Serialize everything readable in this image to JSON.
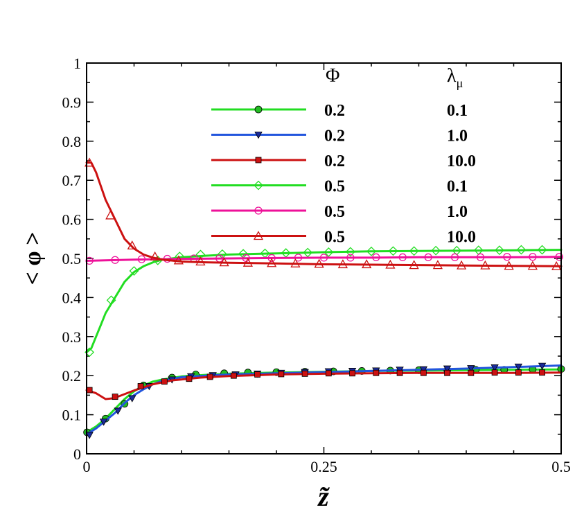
{
  "chart_data": {
    "type": "line",
    "xlabel": "z̃",
    "ylabel": "< φ >",
    "xlim": [
      0,
      0.5
    ],
    "ylim": [
      0,
      1
    ],
    "x_ticks": [
      {
        "value": 0,
        "label": "0"
      },
      {
        "value": 0.25,
        "label": "0.25"
      },
      {
        "value": 0.5,
        "label": "0.5"
      }
    ],
    "y_ticks": [
      {
        "value": 0,
        "label": "0"
      },
      {
        "value": 0.1,
        "label": "0.1"
      },
      {
        "value": 0.2,
        "label": "0.2"
      },
      {
        "value": 0.3,
        "label": "0.3"
      },
      {
        "value": 0.4,
        "label": "0.4"
      },
      {
        "value": 0.5,
        "label": "0.5"
      },
      {
        "value": 0.6,
        "label": "0.6"
      },
      {
        "value": 0.7,
        "label": "0.7"
      },
      {
        "value": 0.8,
        "label": "0.8"
      },
      {
        "value": 0.9,
        "label": "0.9"
      },
      {
        "value": 1,
        "label": "1"
      }
    ],
    "legend": {
      "header_phi": "Φ",
      "header_lambda": "λ",
      "header_lambda_sub": "μ",
      "placement": "top-right"
    },
    "series": [
      {
        "name": "Φ=0.2, λμ=0.1",
        "phi": "0.2",
        "lambda": "0.1",
        "color": "#22dd22",
        "marker": "circle",
        "marker_fill": "#22bb22",
        "line": [
          [
            0,
            0.055
          ],
          [
            0.01,
            0.07
          ],
          [
            0.02,
            0.09
          ],
          [
            0.03,
            0.115
          ],
          [
            0.04,
            0.14
          ],
          [
            0.05,
            0.16
          ],
          [
            0.06,
            0.175
          ],
          [
            0.07,
            0.185
          ],
          [
            0.08,
            0.19
          ],
          [
            0.1,
            0.198
          ],
          [
            0.125,
            0.202
          ],
          [
            0.15,
            0.205
          ],
          [
            0.2,
            0.208
          ],
          [
            0.25,
            0.21
          ],
          [
            0.3,
            0.212
          ],
          [
            0.35,
            0.213
          ],
          [
            0.4,
            0.214
          ],
          [
            0.45,
            0.215
          ],
          [
            0.5,
            0.216
          ]
        ],
        "markers": [
          [
            0.0005,
            0.055
          ],
          [
            0.02,
            0.09
          ],
          [
            0.04,
            0.128
          ],
          [
            0.06,
            0.175
          ],
          [
            0.09,
            0.195
          ],
          [
            0.115,
            0.203
          ],
          [
            0.145,
            0.206
          ],
          [
            0.17,
            0.208
          ],
          [
            0.2,
            0.209
          ],
          [
            0.23,
            0.21
          ],
          [
            0.26,
            0.211
          ],
          [
            0.29,
            0.212
          ],
          [
            0.32,
            0.213
          ],
          [
            0.35,
            0.214
          ],
          [
            0.38,
            0.214
          ],
          [
            0.41,
            0.215
          ],
          [
            0.44,
            0.215
          ],
          [
            0.47,
            0.216
          ],
          [
            0.5,
            0.217
          ]
        ]
      },
      {
        "name": "Φ=0.2, λμ=1.0",
        "phi": "0.2",
        "lambda": "1.0",
        "color": "#2255dd",
        "marker": "triangle-down",
        "marker_fill": "#1a2a99",
        "line": [
          [
            0,
            0.05
          ],
          [
            0.01,
            0.065
          ],
          [
            0.02,
            0.085
          ],
          [
            0.03,
            0.105
          ],
          [
            0.04,
            0.13
          ],
          [
            0.05,
            0.15
          ],
          [
            0.06,
            0.165
          ],
          [
            0.07,
            0.178
          ],
          [
            0.08,
            0.187
          ],
          [
            0.1,
            0.196
          ],
          [
            0.125,
            0.2
          ],
          [
            0.15,
            0.203
          ],
          [
            0.2,
            0.206
          ],
          [
            0.25,
            0.209
          ],
          [
            0.3,
            0.212
          ],
          [
            0.35,
            0.215
          ],
          [
            0.4,
            0.218
          ],
          [
            0.45,
            0.222
          ],
          [
            0.5,
            0.226
          ]
        ],
        "markers": [
          [
            0.003,
            0.048
          ],
          [
            0.018,
            0.082
          ],
          [
            0.033,
            0.11
          ],
          [
            0.048,
            0.142
          ],
          [
            0.066,
            0.173
          ],
          [
            0.09,
            0.19
          ],
          [
            0.11,
            0.198
          ],
          [
            0.133,
            0.201
          ],
          [
            0.157,
            0.203
          ],
          [
            0.18,
            0.205
          ],
          [
            0.205,
            0.207
          ],
          [
            0.23,
            0.209
          ],
          [
            0.255,
            0.211
          ],
          [
            0.28,
            0.212
          ],
          [
            0.305,
            0.213
          ],
          [
            0.33,
            0.215
          ],
          [
            0.355,
            0.216
          ],
          [
            0.38,
            0.218
          ],
          [
            0.405,
            0.219
          ],
          [
            0.43,
            0.221
          ],
          [
            0.455,
            0.223
          ],
          [
            0.48,
            0.225
          ]
        ]
      },
      {
        "name": "Φ=0.2, λμ=10.0",
        "phi": "0.2",
        "lambda": "10.0",
        "color": "#cc1111",
        "marker": "square",
        "marker_fill": "#cc1111",
        "line": [
          [
            0,
            0.163
          ],
          [
            0.01,
            0.155
          ],
          [
            0.02,
            0.14
          ],
          [
            0.028,
            0.142
          ],
          [
            0.035,
            0.148
          ],
          [
            0.05,
            0.162
          ],
          [
            0.07,
            0.178
          ],
          [
            0.09,
            0.188
          ],
          [
            0.12,
            0.195
          ],
          [
            0.15,
            0.199
          ],
          [
            0.2,
            0.203
          ],
          [
            0.25,
            0.205
          ],
          [
            0.3,
            0.206
          ],
          [
            0.35,
            0.207
          ],
          [
            0.4,
            0.207
          ],
          [
            0.45,
            0.207
          ],
          [
            0.5,
            0.208
          ]
        ],
        "markers": [
          [
            0.003,
            0.163
          ],
          [
            0.03,
            0.146
          ],
          [
            0.057,
            0.173
          ],
          [
            0.082,
            0.185
          ],
          [
            0.108,
            0.192
          ],
          [
            0.13,
            0.197
          ],
          [
            0.155,
            0.2
          ],
          [
            0.18,
            0.203
          ],
          [
            0.205,
            0.204
          ],
          [
            0.23,
            0.205
          ],
          [
            0.255,
            0.206
          ],
          [
            0.28,
            0.206
          ],
          [
            0.305,
            0.207
          ],
          [
            0.33,
            0.207
          ],
          [
            0.355,
            0.207
          ],
          [
            0.38,
            0.207
          ],
          [
            0.405,
            0.207
          ],
          [
            0.43,
            0.208
          ],
          [
            0.455,
            0.208
          ],
          [
            0.48,
            0.208
          ]
        ]
      },
      {
        "name": "Φ=0.5, λμ=0.1",
        "phi": "0.5",
        "lambda": "0.1",
        "color": "#22dd22",
        "marker": "diamond",
        "marker_fill": "none",
        "line": [
          [
            0,
            0.26
          ],
          [
            0.005,
            0.27
          ],
          [
            0.01,
            0.3
          ],
          [
            0.015,
            0.33
          ],
          [
            0.02,
            0.36
          ],
          [
            0.03,
            0.4
          ],
          [
            0.04,
            0.44
          ],
          [
            0.05,
            0.465
          ],
          [
            0.06,
            0.48
          ],
          [
            0.07,
            0.49
          ],
          [
            0.08,
            0.497
          ],
          [
            0.1,
            0.503
          ],
          [
            0.125,
            0.507
          ],
          [
            0.15,
            0.51
          ],
          [
            0.2,
            0.513
          ],
          [
            0.25,
            0.516
          ],
          [
            0.3,
            0.518
          ],
          [
            0.35,
            0.519
          ],
          [
            0.4,
            0.52
          ],
          [
            0.45,
            0.521
          ],
          [
            0.5,
            0.522
          ]
        ],
        "markers": [
          [
            0.003,
            0.26
          ],
          [
            0.026,
            0.393
          ],
          [
            0.05,
            0.468
          ],
          [
            0.075,
            0.495
          ],
          [
            0.098,
            0.505
          ],
          [
            0.12,
            0.51
          ],
          [
            0.143,
            0.511
          ],
          [
            0.165,
            0.512
          ],
          [
            0.188,
            0.513
          ],
          [
            0.21,
            0.514
          ],
          [
            0.233,
            0.515
          ],
          [
            0.255,
            0.516
          ],
          [
            0.278,
            0.517
          ],
          [
            0.3,
            0.518
          ],
          [
            0.323,
            0.519
          ],
          [
            0.345,
            0.519
          ],
          [
            0.368,
            0.52
          ],
          [
            0.39,
            0.52
          ],
          [
            0.413,
            0.521
          ],
          [
            0.435,
            0.521
          ],
          [
            0.458,
            0.522
          ],
          [
            0.48,
            0.522
          ]
        ]
      },
      {
        "name": "Φ=0.5, λμ=1.0",
        "phi": "0.5",
        "lambda": "1.0",
        "color": "#ee1199",
        "marker": "circle-open",
        "marker_fill": "none",
        "line": [
          [
            0,
            0.494
          ],
          [
            0.02,
            0.495
          ],
          [
            0.05,
            0.497
          ],
          [
            0.1,
            0.499
          ],
          [
            0.15,
            0.5
          ],
          [
            0.2,
            0.501
          ],
          [
            0.25,
            0.502
          ],
          [
            0.3,
            0.502
          ],
          [
            0.35,
            0.503
          ],
          [
            0.4,
            0.503
          ],
          [
            0.45,
            0.503
          ],
          [
            0.5,
            0.504
          ]
        ],
        "markers": [
          [
            0.003,
            0.494
          ],
          [
            0.03,
            0.496
          ],
          [
            0.058,
            0.498
          ],
          [
            0.085,
            0.499
          ],
          [
            0.113,
            0.5
          ],
          [
            0.14,
            0.5
          ],
          [
            0.168,
            0.501
          ],
          [
            0.195,
            0.501
          ],
          [
            0.223,
            0.502
          ],
          [
            0.25,
            0.502
          ],
          [
            0.278,
            0.502
          ],
          [
            0.305,
            0.503
          ],
          [
            0.333,
            0.503
          ],
          [
            0.36,
            0.503
          ],
          [
            0.388,
            0.503
          ],
          [
            0.415,
            0.503
          ],
          [
            0.443,
            0.504
          ],
          [
            0.47,
            0.504
          ],
          [
            0.498,
            0.504
          ]
        ]
      },
      {
        "name": "Φ=0.5, λμ=10.0",
        "phi": "0.5",
        "lambda": "10.0",
        "color": "#cc1111",
        "marker": "triangle-up-open",
        "marker_fill": "none",
        "line": [
          [
            0,
            0.745
          ],
          [
            0.005,
            0.745
          ],
          [
            0.01,
            0.72
          ],
          [
            0.02,
            0.65
          ],
          [
            0.03,
            0.6
          ],
          [
            0.04,
            0.55
          ],
          [
            0.05,
            0.525
          ],
          [
            0.06,
            0.51
          ],
          [
            0.07,
            0.502
          ],
          [
            0.08,
            0.497
          ],
          [
            0.1,
            0.492
          ],
          [
            0.125,
            0.49
          ],
          [
            0.15,
            0.489
          ],
          [
            0.2,
            0.487
          ],
          [
            0.25,
            0.485
          ],
          [
            0.3,
            0.484
          ],
          [
            0.35,
            0.483
          ],
          [
            0.4,
            0.482
          ],
          [
            0.45,
            0.481
          ],
          [
            0.5,
            0.48
          ]
        ],
        "markers": [
          [
            0.003,
            0.745
          ],
          [
            0.025,
            0.61
          ],
          [
            0.048,
            0.533
          ],
          [
            0.072,
            0.505
          ],
          [
            0.097,
            0.495
          ],
          [
            0.12,
            0.492
          ],
          [
            0.145,
            0.49
          ],
          [
            0.17,
            0.489
          ],
          [
            0.195,
            0.488
          ],
          [
            0.22,
            0.487
          ],
          [
            0.245,
            0.486
          ],
          [
            0.27,
            0.485
          ],
          [
            0.295,
            0.485
          ],
          [
            0.32,
            0.484
          ],
          [
            0.345,
            0.483
          ],
          [
            0.37,
            0.483
          ],
          [
            0.395,
            0.482
          ],
          [
            0.42,
            0.482
          ],
          [
            0.445,
            0.481
          ],
          [
            0.47,
            0.481
          ],
          [
            0.495,
            0.48
          ]
        ]
      }
    ]
  }
}
